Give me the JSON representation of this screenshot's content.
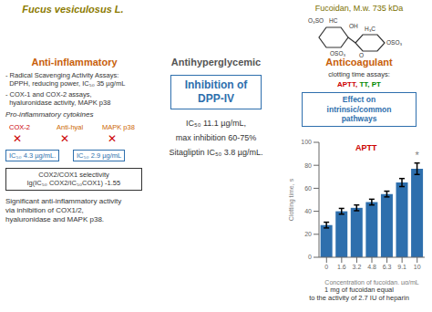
{
  "chart_data": {
    "type": "bar",
    "categories": [
      "0",
      "1.6",
      "3.2",
      "4.8",
      "6.3",
      "9.1",
      "10"
    ],
    "values": [
      28,
      40,
      43,
      48,
      55,
      65,
      77
    ],
    "errors": [
      2.5,
      2.5,
      2.5,
      2.5,
      2.5,
      3.5,
      5
    ],
    "color": "#2e6fad",
    "xlabel": "Concentration of fucoidan, µg/mL",
    "ylabel": "Clotting time, s",
    "ylim": [
      0,
      100
    ],
    "yticks": [
      0,
      20,
      40,
      60,
      80,
      100
    ],
    "grid": false,
    "annotations": [
      {
        "text": "Fucus vesiculosus L.",
        "color": "#8b7a00"
      },
      {
        "text": "Fucoidan, M.w. 735 kDa",
        "color": "#7a7000"
      },
      {
        "text": "O₃SO",
        "color": "#333333"
      },
      {
        "text": "OH",
        "color": "#333333"
      },
      {
        "text": "HC",
        "color": "#333333"
      },
      {
        "text": "OSO₃",
        "color": "#333333"
      },
      {
        "text": "OSO₃",
        "color": "#333333"
      },
      {
        "text": "H₃C",
        "color": "#333333"
      },
      {
        "text": "O",
        "color": "#333333"
      },
      {
        "text": "Anti-inflammatory",
        "color": "#c8600a"
      },
      {
        "text": "- Radical Scavenging Activity Assays:\n  DPPH, reducing power, IC₅₀ 35 µg/mL",
        "color": "#333333"
      },
      {
        "text": "- COX-1 and COX-2 assays,\n  hyaluronidase activity, MAPK p38",
        "color": "#333333"
      },
      {
        "text": "Pro-inflammatory cytokines",
        "color": "#333333"
      },
      {
        "text": "COX-2",
        "color": "#cc0000"
      },
      {
        "text": "Anti-hyal",
        "color": "#cc6600"
      },
      {
        "text": "MAPK p38",
        "color": "#cc6600"
      },
      {
        "text": "✕",
        "color": "#cc0000"
      },
      {
        "text": "✕",
        "color": "#cc0000"
      },
      {
        "text": "✕",
        "color": "#cc0000"
      },
      {
        "text": "IC₅₀ 4.3 µg/mL.",
        "color": "#2e6fad"
      },
      {
        "text": "IC₅₀ 2.9 µg/mL",
        "color": "#2e6fad"
      },
      {
        "text": "COX2/COX1 selectivity\nlg(IC₅₀ COX2/IC₅₀COX1) -1.55",
        "color": "#333333"
      },
      {
        "text": "Significant anti-inflammatory activity\nvia inhibition of COX1/2,\nhyaluronidase and MAPK p38.",
        "color": "#333333"
      },
      {
        "text": "Antihyperglycemic",
        "color": "#555555"
      },
      {
        "text": "Inhibition of\nDPP-IV",
        "color": "#2e6fad"
      },
      {
        "text": "IC₅₀ 11.1 µg/mL,",
        "color": "#333333"
      },
      {
        "text": "max inhibition 60-75%",
        "color": "#333333"
      },
      {
        "text": "Sitagliptin IC₅₀ 3.8 µg/mL.",
        "color": "#333333"
      },
      {
        "text": "Anticoagulant",
        "color": "#c8600a"
      },
      {
        "text": "clotting time assays:",
        "color": "#333333"
      },
      {
        "text": "APTT,",
        "color": "#cc0000"
      },
      {
        "text": " TT,",
        "color": "#008800"
      },
      {
        "text": " PT",
        "color": "#008800"
      },
      {
        "text": "Effect on\nintrinsic/common\npathways",
        "color": "#2e6fad"
      },
      {
        "text": "APTT",
        "color": "#cc0000"
      },
      {
        "text": "*",
        "category": "10"
      },
      {
        "text": "1 mg of fucoidan equal\nto the activity of 2.7 IU of heparin",
        "color": "#333333"
      }
    ]
  }
}
